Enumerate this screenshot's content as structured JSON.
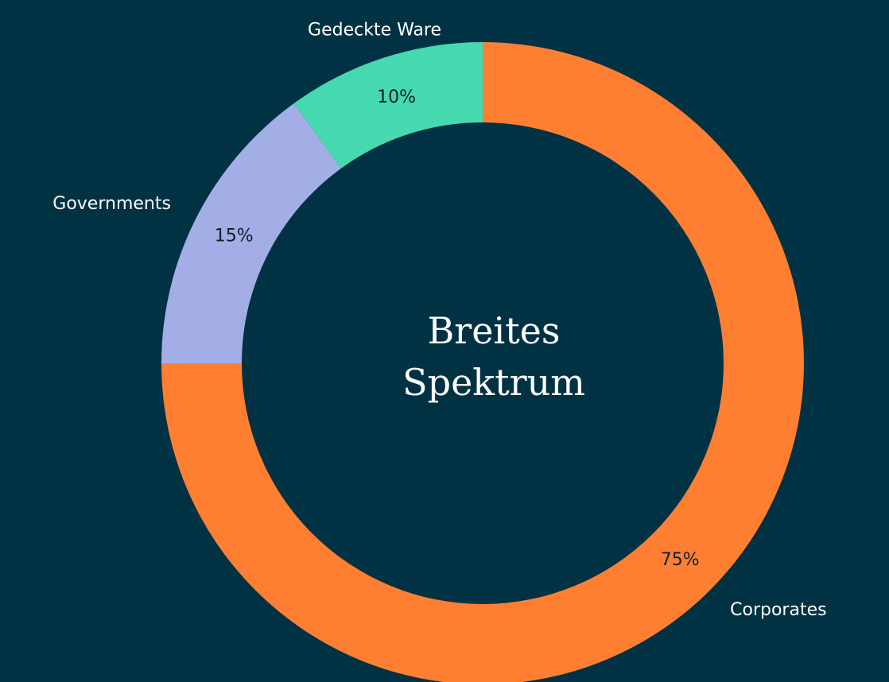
{
  "chart_data": {
    "type": "donut",
    "center_text": [
      "Breites",
      "Spektrum"
    ],
    "categories": [
      "Corporates",
      "Governments",
      "Gedeckte Ware"
    ],
    "values": [
      75,
      15,
      10
    ],
    "value_labels": [
      "75%",
      "15%",
      "10%"
    ],
    "colors": [
      "#ff7f32",
      "#a3aee6",
      "#46d9b0"
    ]
  }
}
